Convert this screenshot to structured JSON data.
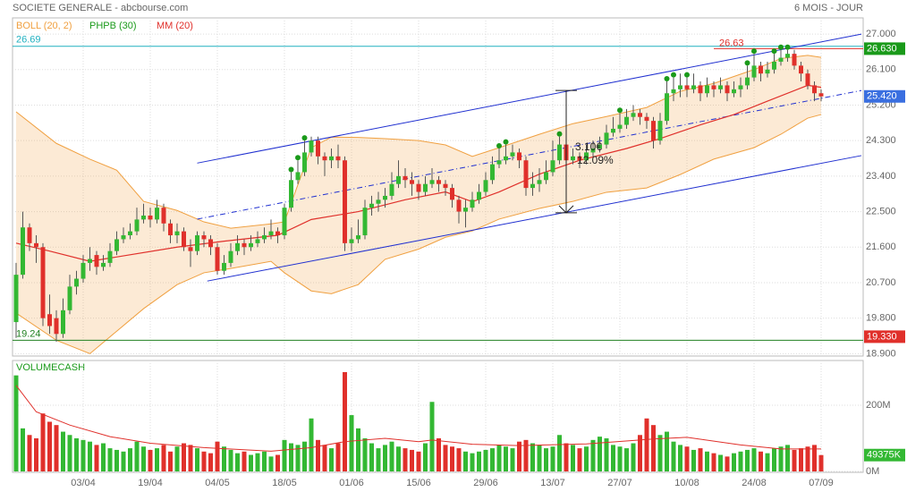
{
  "chart_data": {
    "type": "candlestick",
    "title": "SOCIETE GENERALE - abcbourse.com",
    "subtitle": "6 MOIS - JOUR",
    "categories": [
      null,
      null,
      null,
      null,
      null,
      null,
      null,
      null,
      null,
      null,
      "03/04",
      null,
      null,
      null,
      null,
      null,
      null,
      null,
      null,
      null,
      "19/04",
      null,
      null,
      null,
      null,
      null,
      null,
      null,
      null,
      null,
      "04/05",
      null,
      null,
      null,
      null,
      null,
      null,
      null,
      null,
      null,
      "18/05",
      null,
      null,
      null,
      null,
      null,
      null,
      null,
      null,
      null,
      "01/06",
      null,
      null,
      null,
      null,
      null,
      null,
      null,
      null,
      null,
      "15/06",
      null,
      null,
      null,
      null,
      null,
      null,
      null,
      null,
      null,
      "29/06",
      null,
      null,
      null,
      null,
      null,
      null,
      null,
      null,
      null,
      "13/07",
      null,
      null,
      null,
      null,
      null,
      null,
      null,
      null,
      null,
      "27/07",
      null,
      null,
      null,
      null,
      null,
      null,
      null,
      null,
      null,
      "10/08",
      null,
      null,
      null,
      null,
      null,
      null,
      null,
      null,
      null,
      "24/08",
      null,
      null,
      null,
      null,
      null,
      null,
      null,
      null,
      null,
      "07/09"
    ],
    "open": [
      19.7,
      20.9,
      22.1,
      21.7,
      21.6,
      19.9,
      19.8,
      19.4,
      20.0,
      20.6,
      20.8,
      21.2,
      21.4,
      21.1,
      21.2,
      21.5,
      21.8,
      21.9,
      22.0,
      22.3,
      22.4,
      22.3,
      22.6,
      22.2,
      21.9,
      22.0,
      21.6,
      21.5,
      21.9,
      21.8,
      21.6,
      21.0,
      21.2,
      21.5,
      21.7,
      21.6,
      21.7,
      21.8,
      21.9,
      22.0,
      21.9,
      22.6,
      23.3,
      23.5,
      24.0,
      24.3,
      23.9,
      23.8,
      23.9,
      23.8,
      21.7,
      21.8,
      21.9,
      22.6,
      22.7,
      22.8,
      22.9,
      23.2,
      23.4,
      23.3,
      23.2,
      23.0,
      23.2,
      23.3,
      23.2,
      23.1,
      22.8,
      22.5,
      22.6,
      22.8,
      23.0,
      23.3,
      23.7,
      23.8,
      23.9,
      24.0,
      23.8,
      23.1,
      23.2,
      23.3,
      23.5,
      23.8,
      24.2,
      23.8,
      23.9,
      23.8,
      24.0,
      24.1,
      24.2,
      24.5,
      24.6,
      24.7,
      24.9,
      25.0,
      24.9,
      24.8,
      24.3,
      24.8,
      25.5,
      25.6,
      25.7,
      25.6,
      25.7,
      25.5,
      25.7,
      25.6,
      25.7,
      25.5,
      25.6,
      25.7,
      25.9,
      26.2,
      26.0,
      26.1,
      26.3,
      26.4,
      26.5,
      26.2,
      26.0,
      25.7,
      25.5
    ],
    "high": [
      21.2,
      22.5,
      22.2,
      21.9,
      21.7,
      20.4,
      20.0,
      20.3,
      20.9,
      21.0,
      21.4,
      21.6,
      21.5,
      21.4,
      21.7,
      22.0,
      22.1,
      22.2,
      22.6,
      22.7,
      22.6,
      22.8,
      22.7,
      22.3,
      22.2,
      22.1,
      21.8,
      22.0,
      22.0,
      21.9,
      21.7,
      21.4,
      21.7,
      21.9,
      21.8,
      21.9,
      22.0,
      22.1,
      22.3,
      22.1,
      22.7,
      23.5,
      23.8,
      24.3,
      24.4,
      24.4,
      24.0,
      24.1,
      24.2,
      23.9,
      22.1,
      22.3,
      22.8,
      22.9,
      23.0,
      23.1,
      23.5,
      23.8,
      23.6,
      23.5,
      23.3,
      23.4,
      23.6,
      23.4,
      23.3,
      23.2,
      22.9,
      22.8,
      23.0,
      23.2,
      23.5,
      23.9,
      24.1,
      24.2,
      24.2,
      24.1,
      23.9,
      23.5,
      23.6,
      23.8,
      24.3,
      24.4,
      24.3,
      24.1,
      24.0,
      24.2,
      24.3,
      24.4,
      24.7,
      24.9,
      25.0,
      25.1,
      25.2,
      25.1,
      25.0,
      24.9,
      25.0,
      25.8,
      25.9,
      26.0,
      25.9,
      26.0,
      25.8,
      25.9,
      25.8,
      25.9,
      25.8,
      25.8,
      25.9,
      26.2,
      26.5,
      26.3,
      26.3,
      26.5,
      26.6,
      26.6,
      26.6,
      26.3,
      26.1,
      25.8,
      25.6
    ],
    "low": [
      19.3,
      20.8,
      21.5,
      21.2,
      19.6,
      19.4,
      19.2,
      19.3,
      19.9,
      20.4,
      20.7,
      21.0,
      20.9,
      21.0,
      21.1,
      21.4,
      21.7,
      21.8,
      21.9,
      22.2,
      22.1,
      22.2,
      22.0,
      21.7,
      21.7,
      21.5,
      21.1,
      21.4,
      21.6,
      21.4,
      20.9,
      20.9,
      21.1,
      21.4,
      21.4,
      21.5,
      21.6,
      21.7,
      21.8,
      21.7,
      21.8,
      22.5,
      23.2,
      23.4,
      23.9,
      23.7,
      23.4,
      23.6,
      23.6,
      21.5,
      21.5,
      21.7,
      21.8,
      22.4,
      22.5,
      22.6,
      22.8,
      23.1,
      23.1,
      22.9,
      22.8,
      22.9,
      23.1,
      23.0,
      22.9,
      22.6,
      22.2,
      22.1,
      22.5,
      22.7,
      22.9,
      23.2,
      23.6,
      23.7,
      23.8,
      23.6,
      22.9,
      22.9,
      23.0,
      23.2,
      23.4,
      23.7,
      23.6,
      23.7,
      23.6,
      23.7,
      23.9,
      24.0,
      24.1,
      24.4,
      24.5,
      24.6,
      24.8,
      24.7,
      24.6,
      24.1,
      24.2,
      24.7,
      25.3,
      25.4,
      25.4,
      25.5,
      25.3,
      25.4,
      25.4,
      25.5,
      25.3,
      25.4,
      25.4,
      25.6,
      25.8,
      25.8,
      25.9,
      26.0,
      26.2,
      26.3,
      26.1,
      25.8,
      25.6,
      25.3,
      25.3
    ],
    "close": [
      20.9,
      22.1,
      21.7,
      21.6,
      19.8,
      19.6,
      19.4,
      20.0,
      20.6,
      20.8,
      21.2,
      21.3,
      21.1,
      21.2,
      21.5,
      21.8,
      21.9,
      22.0,
      22.3,
      22.4,
      22.3,
      22.6,
      22.2,
      21.9,
      22.0,
      21.6,
      21.5,
      21.9,
      21.8,
      21.6,
      21.0,
      21.2,
      21.5,
      21.7,
      21.6,
      21.7,
      21.8,
      21.9,
      22.0,
      21.9,
      22.6,
      23.3,
      23.5,
      24.0,
      24.3,
      23.9,
      23.8,
      23.9,
      23.8,
      21.7,
      21.8,
      21.9,
      22.6,
      22.7,
      22.8,
      22.9,
      23.2,
      23.4,
      23.3,
      23.2,
      23.0,
      23.2,
      23.3,
      23.2,
      23.1,
      22.8,
      22.5,
      22.6,
      22.8,
      23.0,
      23.3,
      23.7,
      23.8,
      23.9,
      24.0,
      23.8,
      23.1,
      23.2,
      23.3,
      23.5,
      23.8,
      24.2,
      23.8,
      23.9,
      23.8,
      24.0,
      24.1,
      24.2,
      24.5,
      24.6,
      24.7,
      24.9,
      25.0,
      24.9,
      24.8,
      24.3,
      24.8,
      25.5,
      25.6,
      25.7,
      25.6,
      25.7,
      25.5,
      25.7,
      25.6,
      25.7,
      25.5,
      25.6,
      25.7,
      25.9,
      26.2,
      26.0,
      26.1,
      26.3,
      26.4,
      26.5,
      26.2,
      26.0,
      25.7,
      25.5,
      25.42
    ],
    "up_color": "#33b833",
    "down_color": "#e0302b",
    "ylim": [
      18.84,
      27.41
    ],
    "yticks": [
      {
        "value": 27,
        "label": "27.000"
      },
      {
        "value": 26.1,
        "label": "26.100"
      },
      {
        "value": 25.2,
        "label": "25.200"
      },
      {
        "value": 24.3,
        "label": "24.300"
      },
      {
        "value": 23.4,
        "label": "23.400"
      },
      {
        "value": 22.5,
        "label": "22.500"
      },
      {
        "value": 21.6,
        "label": "21.600"
      },
      {
        "value": 20.7,
        "label": "20.700"
      },
      {
        "value": 19.8,
        "label": "19.800"
      },
      {
        "value": 18.9,
        "label": "18.900"
      }
    ],
    "grid": true,
    "bollinger": {
      "name": "BOLL (20, 2)",
      "color": "#f0a040",
      "x": [
        0,
        6,
        11,
        15,
        19,
        24,
        28,
        32,
        38,
        40,
        44,
        47,
        51,
        55,
        60,
        64,
        68,
        72,
        78,
        83,
        88,
        94,
        99,
        104,
        110,
        114,
        118,
        120
      ],
      "upper": [
        25.03,
        24.23,
        23.83,
        23.55,
        22.76,
        22.53,
        22.24,
        22.08,
        22.19,
        22.24,
        24.12,
        24.39,
        24.38,
        24.35,
        24.3,
        24.19,
        23.9,
        24.12,
        24.46,
        24.73,
        24.91,
        25.14,
        25.55,
        25.75,
        26.1,
        26.38,
        26.46,
        26.41
      ],
      "lower": [
        19.93,
        19.24,
        18.9,
        19.47,
        20.04,
        20.65,
        20.95,
        21.06,
        21.24,
        20.95,
        20.49,
        20.42,
        20.65,
        21.29,
        21.55,
        21.85,
        22.01,
        22.31,
        22.58,
        22.76,
        22.99,
        23.1,
        23.44,
        23.83,
        24.12,
        24.46,
        24.87,
        24.96
      ]
    },
    "phpb": {
      "name": "PHPB (30)",
      "color": "#1a9a1a",
      "indices": [
        41,
        42,
        43,
        72,
        73,
        81,
        90,
        97,
        98,
        100,
        109,
        110,
        113,
        114,
        115
      ]
    },
    "moving_average": {
      "name": "MM (20)",
      "color": "#e0302b",
      "x": [
        0,
        5,
        11,
        24,
        31,
        39,
        44,
        51,
        58,
        64,
        68,
        72,
        78,
        84,
        91,
        96,
        102,
        107,
        112,
        118,
        120
      ],
      "values": [
        21.7,
        21.5,
        21.24,
        21.6,
        21.75,
        21.9,
        22.3,
        22.5,
        22.8,
        23.0,
        22.75,
        23.0,
        23.45,
        23.8,
        24.1,
        24.35,
        24.7,
        24.96,
        25.3,
        25.7,
        25.65
      ]
    },
    "levels": [
      {
        "value": 26.69,
        "color": "#20b0c0"
      },
      {
        "value": 19.24,
        "color": "#208020"
      }
    ],
    "resistance": {
      "value": 26.63,
      "from": 104,
      "color": "#e0302b"
    },
    "badges": [
      {
        "value": 26.63,
        "label": "26.630",
        "color": "#1a9a1a"
      },
      {
        "value": 25.42,
        "label": "25.420",
        "color": "#3a6fe0"
      },
      {
        "value": 19.33,
        "label": "19.330",
        "color": "#e0302b"
      }
    ],
    "channel": {
      "color": "#2030d0",
      "upper": {
        "x": [
          27,
          126
        ],
        "values": [
          23.73,
          27.0
        ]
      },
      "lower": {
        "x": [
          28.5,
          126
        ],
        "values": [
          20.74,
          23.92
        ]
      },
      "middle": {
        "x": [
          27,
          126
        ],
        "values": [
          22.31,
          25.57
        ]
      }
    },
    "measure": {
      "x": 82,
      "values": [
        25.57,
        22.47
      ],
      "labels": [
        "3.10€",
        "12.09%"
      ]
    },
    "volume": {
      "name": "VOLUMECASH",
      "values": [
        290,
        130,
        110,
        100,
        175,
        150,
        140,
        120,
        110,
        100,
        95,
        90,
        80,
        85,
        70,
        65,
        60,
        70,
        90,
        75,
        65,
        70,
        80,
        60,
        75,
        85,
        80,
        70,
        60,
        55,
        90,
        75,
        65,
        55,
        60,
        50,
        55,
        60,
        45,
        50,
        95,
        85,
        80,
        90,
        160,
        95,
        80,
        70,
        85,
        300,
        170,
        130,
        100,
        85,
        70,
        80,
        90,
        75,
        70,
        65,
        60,
        85,
        210,
        100,
        80,
        75,
        70,
        60,
        55,
        60,
        65,
        70,
        80,
        75,
        70,
        90,
        95,
        85,
        80,
        70,
        75,
        110,
        85,
        80,
        70,
        75,
        95,
        105,
        100,
        80,
        75,
        70,
        85,
        110,
        160,
        140,
        110,
        120,
        90,
        80,
        75,
        65,
        70,
        60,
        55,
        50,
        45,
        55,
        60,
        65,
        70,
        60,
        55,
        70,
        75,
        80,
        65,
        70,
        75,
        80,
        49.375
      ],
      "ylim": [
        0,
        335
      ],
      "yticks": [
        {
          "value": 200,
          "label": "200M"
        },
        {
          "value": 0,
          "label": "0M"
        }
      ],
      "last_label": "49375K",
      "mm": {
        "color": "#e0302b",
        "x": [
          0,
          3,
          8,
          14,
          20,
          28,
          38,
          44,
          49,
          55,
          60,
          62,
          68,
          75,
          85,
          95,
          100,
          108,
          114,
          120
        ],
        "values": [
          260,
          180,
          140,
          105,
          85,
          72,
          61,
          72,
          90,
          100,
          90,
          95,
          82,
          78,
          83,
          98,
          103,
          80,
          68,
          68
        ]
      }
    }
  }
}
